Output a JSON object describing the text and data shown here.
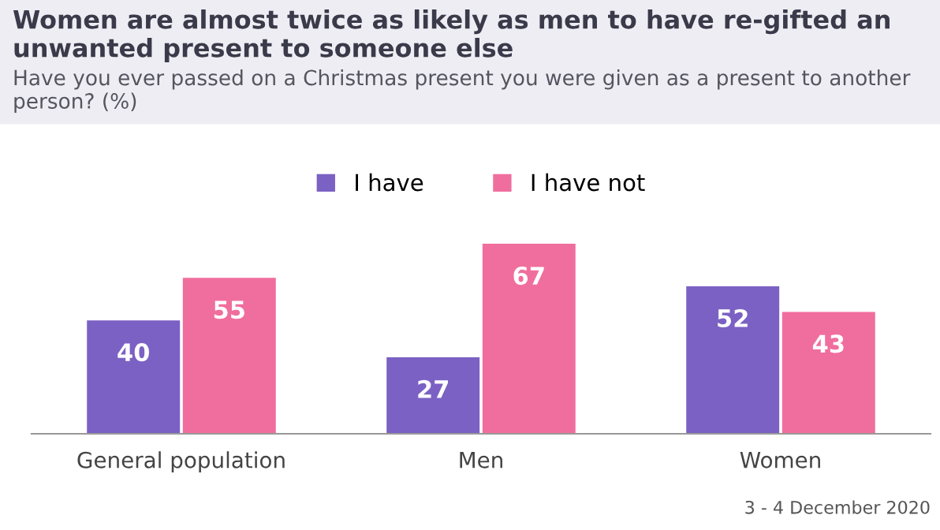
{
  "chart_data": {
    "type": "bar",
    "title": "Women are almost twice as likely as men to have re-gifted an unwanted present to someone else",
    "subtitle": "Have you ever passed on a Christmas present you were given as a present to another person? (%)",
    "categories": [
      "General population",
      "Men",
      "Women"
    ],
    "series": [
      {
        "name": "I have",
        "color": "#7b61c4",
        "values": [
          40,
          27,
          52
        ]
      },
      {
        "name": "I have not",
        "color": "#f06e9e",
        "values": [
          55,
          67,
          43
        ]
      }
    ],
    "data_labels": true,
    "legend": "top",
    "grid": false,
    "annotations": [
      "3 - 4 December 2020"
    ]
  }
}
